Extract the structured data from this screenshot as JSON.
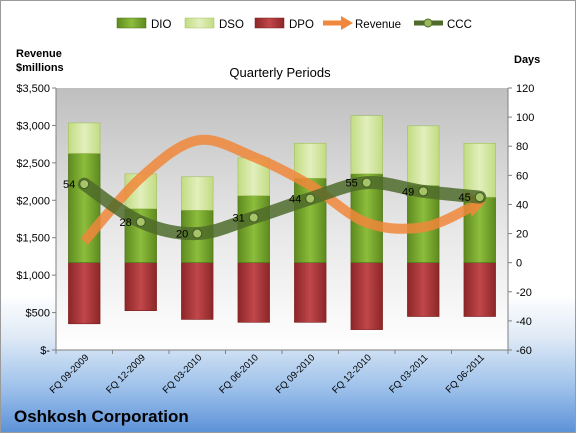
{
  "chart_data": {
    "type": "bar",
    "title": "Oshkosh Corporation",
    "subtitle": "Quarterly Periods",
    "categories": [
      "FQ 09-2009",
      "FQ 12-2009",
      "FQ 03-2010",
      "FQ 06-2010",
      "FQ 09-2010",
      "FQ 12-2010",
      "FQ 03-2011",
      "FQ 06-2011"
    ],
    "left_axis": {
      "label_line1": "Revenue",
      "label_line2": "$millions",
      "ylim": [
        0,
        3500
      ],
      "ticks": [
        0,
        500,
        1000,
        1500,
        2000,
        2500,
        3000,
        3500
      ],
      "tick_labels": [
        "$-",
        "$500",
        "$1,000",
        "$1,500",
        "$2,000",
        "$2,500",
        "$3,000",
        "$3,500"
      ]
    },
    "right_axis": {
      "label": "Days",
      "ylim": [
        -60,
        120
      ],
      "ticks": [
        -60,
        -40,
        -20,
        0,
        20,
        40,
        60,
        80,
        100,
        120
      ],
      "tick_labels": [
        "-60",
        "-40",
        "-20",
        "0",
        "20",
        "40",
        "60",
        "80",
        "100",
        "120"
      ]
    },
    "series": [
      {
        "name": "DIO",
        "kind": "bar",
        "axis": "right",
        "color": "#7fa832",
        "values": [
          75,
          37,
          36,
          46,
          58,
          61,
          53,
          45
        ]
      },
      {
        "name": "DSO",
        "kind": "bar",
        "axis": "right",
        "color": "#d6e8a8",
        "values": [
          21,
          24,
          23,
          26,
          24,
          40,
          41,
          37
        ]
      },
      {
        "name": "DPO",
        "kind": "bar",
        "axis": "right",
        "color": "#b03a3e",
        "values": [
          -42,
          -33,
          -39,
          -41,
          -41,
          -46,
          -37,
          -37
        ]
      },
      {
        "name": "Revenue",
        "kind": "line",
        "axis": "left",
        "color": "#f0873a",
        "values": [
          1450,
          2300,
          2800,
          2580,
          2200,
          1700,
          1640,
          1950
        ]
      },
      {
        "name": "CCC",
        "kind": "line",
        "axis": "right",
        "color": "#4f6b2a",
        "values": [
          54,
          28,
          20,
          31,
          44,
          55,
          49,
          45
        ],
        "data_labels": [
          "54",
          "28",
          "20",
          "31",
          "44",
          "55",
          "49",
          "45"
        ]
      }
    ],
    "grid": false,
    "legend": "top"
  }
}
